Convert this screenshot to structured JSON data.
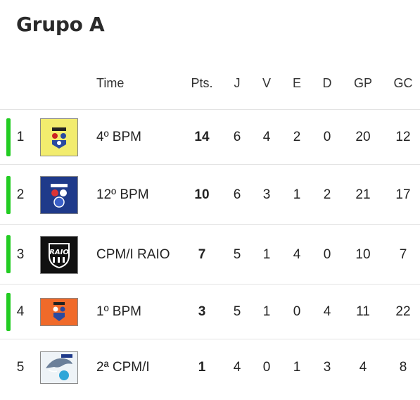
{
  "title": "Grupo A",
  "headers": {
    "team": "Time",
    "pts": "Pts.",
    "j": "J",
    "v": "V",
    "e": "E",
    "d": "D",
    "gp": "GP",
    "gc": "GC"
  },
  "colors": {
    "qualify_bar": "#22cc22"
  },
  "rows": [
    {
      "pos": "1",
      "team": "4º BPM",
      "pts": "14",
      "j": "6",
      "v": "4",
      "e": "2",
      "d": "0",
      "gp": "20",
      "gc": "12",
      "qualified": true,
      "crest_bg": "#f2ec6e",
      "crest_label": "4º BPM"
    },
    {
      "pos": "2",
      "team": "12º BPM",
      "pts": "10",
      "j": "6",
      "v": "3",
      "e": "1",
      "d": "2",
      "gp": "21",
      "gc": "17",
      "qualified": true,
      "crest_bg": "#1f3a8a",
      "crest_label": "12º BPM"
    },
    {
      "pos": "3",
      "team": "CPM/I RAIO",
      "pts": "7",
      "j": "5",
      "v": "1",
      "e": "4",
      "d": "0",
      "gp": "10",
      "gc": "7",
      "qualified": true,
      "crest_bg": "#111111",
      "crest_label": "RAIO"
    },
    {
      "pos": "4",
      "team": "1º BPM",
      "pts": "3",
      "j": "5",
      "v": "1",
      "e": "0",
      "d": "4",
      "gp": "11",
      "gc": "22",
      "qualified": true,
      "crest_bg": "#f06a2a",
      "crest_label": "1º BPM"
    },
    {
      "pos": "5",
      "team": "2ª CPM/I",
      "pts": "1",
      "j": "4",
      "v": "0",
      "e": "1",
      "d": "3",
      "gp": "4",
      "gc": "8",
      "qualified": false,
      "crest_bg": "#eef3f7",
      "crest_label": "2ª CPM/I"
    }
  ]
}
